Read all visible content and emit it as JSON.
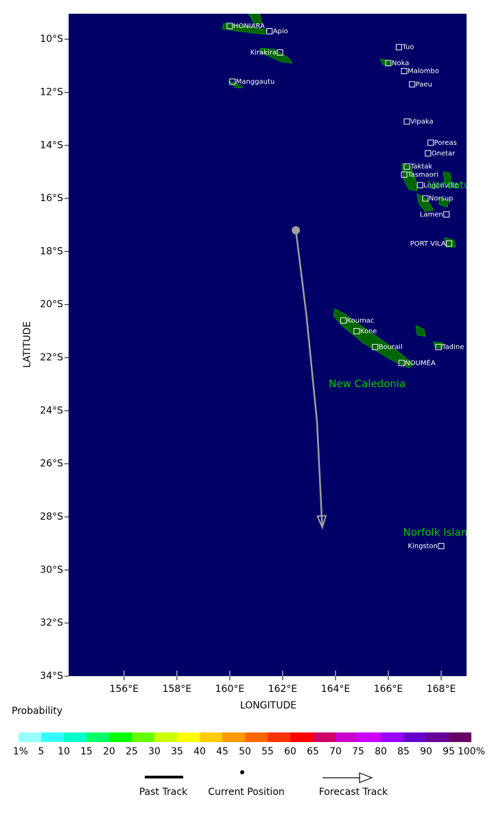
{
  "chart_data": {
    "type": "map",
    "xlabel": "LONGITUDE",
    "ylabel": "LATITUDE",
    "xlim": [
      153.9,
      168.96
    ],
    "ylim": [
      -34,
      -9.04
    ],
    "xticks": [
      {
        "value": 156,
        "label": "156°E"
      },
      {
        "value": 158,
        "label": "158°E"
      },
      {
        "value": 160,
        "label": "160°E"
      },
      {
        "value": 162,
        "label": "162°E"
      },
      {
        "value": 164,
        "label": "164°E"
      },
      {
        "value": 166,
        "label": "166°E"
      },
      {
        "value": 168,
        "label": "168°E"
      }
    ],
    "yticks": [
      {
        "value": -10,
        "label": "10°S"
      },
      {
        "value": -12,
        "label": "12°S"
      },
      {
        "value": -14,
        "label": "14°S"
      },
      {
        "value": -16,
        "label": "16°S"
      },
      {
        "value": -18,
        "label": "18°S"
      },
      {
        "value": -20,
        "label": "20°S"
      },
      {
        "value": -22,
        "label": "22°S"
      },
      {
        "value": -24,
        "label": "24°S"
      },
      {
        "value": -26,
        "label": "26°S"
      },
      {
        "value": -28,
        "label": "28°S"
      },
      {
        "value": -30,
        "label": "30°S"
      },
      {
        "value": -32,
        "label": "32°S"
      },
      {
        "value": -34,
        "label": "34°S"
      }
    ],
    "map_color": "#000066",
    "track_color": "#a0a0a0",
    "current_position": {
      "lon": 162.5,
      "lat": -17.2
    },
    "forecast_track": {
      "lon": [
        162.5,
        162.9,
        163.3,
        163.5
      ],
      "lat": [
        -17.2,
        -20.4,
        -24.4,
        -28.4
      ]
    },
    "places": [
      {
        "name": "HONIARA",
        "lon": 160.0,
        "lat": -9.5
      },
      {
        "name": "Apio",
        "lon": 161.5,
        "lat": -9.7
      },
      {
        "name": "Kirakira",
        "lon": 161.9,
        "lat": -10.5,
        "side": "left"
      },
      {
        "name": "Manggautu",
        "lon": 160.1,
        "lat": -11.6
      },
      {
        "name": "Tuo",
        "lon": 166.4,
        "lat": -10.3
      },
      {
        "name": "Noka",
        "lon": 166.0,
        "lat": -10.9
      },
      {
        "name": "Malombo",
        "lon": 166.6,
        "lat": -11.2
      },
      {
        "name": "Paeu",
        "lon": 166.9,
        "lat": -11.7
      },
      {
        "name": "Vipaka",
        "lon": 166.7,
        "lat": -13.1
      },
      {
        "name": "Poreas",
        "lon": 167.6,
        "lat": -13.9
      },
      {
        "name": "Onetar",
        "lon": 167.5,
        "lat": -14.3
      },
      {
        "name": "Taktak",
        "lon": 166.7,
        "lat": -14.8
      },
      {
        "name": "Tasmaori",
        "lon": 166.6,
        "lat": -15.1
      },
      {
        "name": "Luganville",
        "lon": 167.2,
        "lat": -15.5
      },
      {
        "name": "Norsup",
        "lon": 167.4,
        "lat": -16.0
      },
      {
        "name": "Lamen",
        "lon": 168.2,
        "lat": -16.6,
        "side": "left"
      },
      {
        "name": "PORT VILA",
        "lon": 168.3,
        "lat": -17.7,
        "side": "left"
      },
      {
        "name": "Koumac",
        "lon": 164.3,
        "lat": -20.6
      },
      {
        "name": "Kone",
        "lon": 164.8,
        "lat": -21.0
      },
      {
        "name": "Bourail",
        "lon": 165.5,
        "lat": -21.6
      },
      {
        "name": "NOUMÉA",
        "lon": 166.5,
        "lat": -22.2
      },
      {
        "name": "Tadine",
        "lon": 167.9,
        "lat": -21.6
      },
      {
        "name": "Kingston",
        "lon": 168.0,
        "lat": -29.1,
        "side": "left"
      }
    ],
    "regions": [
      {
        "name": "Vanuatu",
        "lon": 168.3,
        "lat": -15.5
      },
      {
        "name": "New Caledonia",
        "lon": 165.2,
        "lat": -23.0
      },
      {
        "name": "Norfolk Island",
        "lon": 167.9,
        "lat": -28.6
      }
    ],
    "colorbar": {
      "title": "Probability",
      "colors": [
        "#99ffff",
        "#33ffff",
        "#00ffcc",
        "#00ff66",
        "#00ff00",
        "#66ff00",
        "#ccff00",
        "#ffff00",
        "#ffcc00",
        "#ff9900",
        "#ff6600",
        "#ff3300",
        "#ff0000",
        "#cc0066",
        "#cc00cc",
        "#cc00ff",
        "#9900ff",
        "#6600cc",
        "#660099",
        "#660066"
      ],
      "ticks": [
        {
          "value": 1,
          "label": "1%"
        },
        5,
        10,
        15,
        20,
        25,
        30,
        35,
        40,
        45,
        50,
        55,
        60,
        65,
        70,
        75,
        80,
        85,
        90,
        95,
        {
          "value": 100,
          "label": "100%"
        }
      ]
    },
    "legend": [
      "Past Track",
      "Current Position",
      "Forecast Track"
    ]
  }
}
